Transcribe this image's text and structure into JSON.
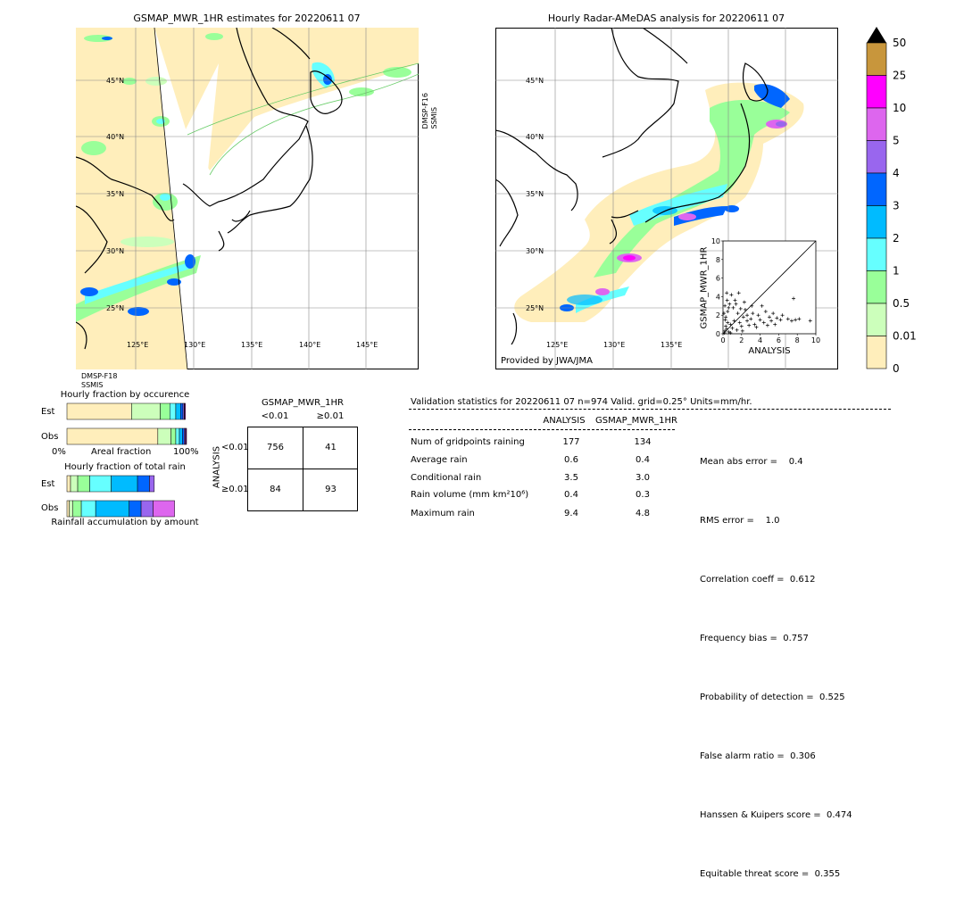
{
  "left_map": {
    "title": "GSMAP_MWR_1HR estimates for 20220611 07",
    "lat_labels": [
      "45°N",
      "40°N",
      "35°N",
      "30°N",
      "25°N"
    ],
    "lon_labels": [
      "125°E",
      "130°E",
      "135°E",
      "140°E",
      "145°E"
    ],
    "swath_label_right": [
      "DMSP-F16",
      "SSMIS"
    ],
    "swath_label_bottom": [
      "DMSP-F18",
      "SSMIS"
    ]
  },
  "right_map": {
    "title": "Hourly Radar-AMeDAS analysis for 20220611 07",
    "lat_labels": [
      "45°N",
      "40°N",
      "35°N",
      "30°N",
      "25°N"
    ],
    "lon_labels": [
      "125°E",
      "130°E",
      "135°E"
    ],
    "credit": "Provided by JWA/JMA"
  },
  "colorbar": {
    "labels": [
      "50",
      "25",
      "10",
      "5",
      "4",
      "3",
      "2",
      "1",
      "0.5",
      "0.01",
      "0"
    ],
    "colors": [
      "#c8963c",
      "#ff00ff",
      "#dd66ee",
      "#9966ee",
      "#0066ff",
      "#00bbff",
      "#66ffff",
      "#99ff99",
      "#ccffbb",
      "#ffeebb"
    ]
  },
  "chart_data": [
    {
      "type": "scatter",
      "title": "",
      "xlabel": "ANALYSIS",
      "ylabel": "GSMAP_MWR_1HR",
      "xlim": [
        0,
        10
      ],
      "ylim": [
        0,
        10
      ],
      "xticks": [
        "0",
        "2",
        "4",
        "6",
        "8",
        "10"
      ],
      "yticks": [
        "0",
        "2",
        "4",
        "6",
        "8",
        "10"
      ],
      "diagonal": true,
      "points": [
        [
          0.2,
          0.3
        ],
        [
          0.4,
          0.5
        ],
        [
          0.6,
          0.2
        ],
        [
          0.8,
          1.0
        ],
        [
          1.0,
          0.6
        ],
        [
          1.2,
          1.4
        ],
        [
          0.3,
          1.8
        ],
        [
          0.5,
          2.4
        ],
        [
          0.7,
          3.2
        ],
        [
          0.9,
          4.2
        ],
        [
          1.1,
          2.8
        ],
        [
          1.3,
          3.6
        ],
        [
          0.4,
          4.4
        ],
        [
          1.6,
          2.2
        ],
        [
          1.8,
          1.2
        ],
        [
          2.0,
          0.8
        ],
        [
          2.2,
          1.8
        ],
        [
          2.4,
          2.6
        ],
        [
          2.6,
          1.4
        ],
        [
          2.8,
          0.9
        ],
        [
          3.0,
          1.6
        ],
        [
          3.2,
          2.2
        ],
        [
          3.4,
          1.0
        ],
        [
          3.6,
          0.7
        ],
        [
          3.8,
          2.0
        ],
        [
          4.0,
          1.5
        ],
        [
          4.2,
          3.0
        ],
        [
          4.4,
          1.2
        ],
        [
          4.6,
          2.4
        ],
        [
          4.8,
          0.9
        ],
        [
          5.0,
          1.8
        ],
        [
          5.2,
          1.4
        ],
        [
          5.4,
          2.2
        ],
        [
          5.6,
          1.0
        ],
        [
          5.8,
          1.7
        ],
        [
          6.2,
          1.5
        ],
        [
          6.4,
          2.0
        ],
        [
          7.0,
          1.6
        ],
        [
          7.4,
          1.4
        ],
        [
          7.8,
          1.5
        ],
        [
          8.2,
          1.6
        ],
        [
          9.4,
          1.4
        ],
        [
          7.6,
          3.8
        ],
        [
          0.2,
          3.0
        ],
        [
          0.6,
          2.8
        ],
        [
          1.4,
          3.2
        ],
        [
          1.7,
          4.4
        ],
        [
          2.3,
          3.4
        ],
        [
          0.15,
          0.1
        ],
        [
          0.3,
          0.8
        ],
        [
          0.5,
          1.2
        ],
        [
          0.1,
          2.2
        ],
        [
          0.8,
          0.1
        ],
        [
          1.5,
          0.4
        ],
        [
          2.1,
          0.3
        ],
        [
          0.25,
          1.5
        ],
        [
          1.9,
          2.7
        ],
        [
          3.1,
          3.0
        ],
        [
          0.45,
          3.6
        ],
        [
          2.6,
          2.0
        ]
      ]
    },
    {
      "type": "bar",
      "title": "Hourly fraction by occurence",
      "categories": [
        "Est",
        "Obs"
      ],
      "xlabel": "Areal fraction",
      "x_left_label": "0%",
      "x_right_label": "100%",
      "series": [
        {
          "color": "#ffeebb",
          "values": [
            0.54,
            0.76
          ]
        },
        {
          "color": "#ccffbb",
          "values": [
            0.24,
            0.11
          ]
        },
        {
          "color": "#99ff99",
          "values": [
            0.08,
            0.04
          ]
        },
        {
          "color": "#66ffff",
          "values": [
            0.05,
            0.03
          ]
        },
        {
          "color": "#00bbff",
          "values": [
            0.04,
            0.025
          ]
        },
        {
          "color": "#0066ff",
          "values": [
            0.02,
            0.015
          ]
        },
        {
          "color": "#9966ee",
          "values": [
            0.01,
            0.01
          ]
        },
        {
          "color": "#dd66ee",
          "values": [
            0.005,
            0.005
          ]
        },
        {
          "color": "#ff00ff",
          "values": [
            0.005,
            0.005
          ]
        }
      ]
    },
    {
      "type": "bar",
      "title": "Hourly fraction of total rain",
      "categories": [
        "Est",
        "Obs"
      ],
      "xlabel": "Rainfall accumulation by amount",
      "series": [
        {
          "color": "#ffeebb",
          "values": [
            0.03,
            0.02
          ]
        },
        {
          "color": "#ccffbb",
          "values": [
            0.06,
            0.03
          ]
        },
        {
          "color": "#99ff99",
          "values": [
            0.1,
            0.07
          ]
        },
        {
          "color": "#66ffff",
          "values": [
            0.18,
            0.12
          ]
        },
        {
          "color": "#00bbff",
          "values": [
            0.22,
            0.28
          ]
        },
        {
          "color": "#0066ff",
          "values": [
            0.1,
            0.1
          ]
        },
        {
          "color": "#9966ee",
          "values": [
            0.04,
            0.1
          ]
        },
        {
          "color": "#dd66ee",
          "values": [
            0.0,
            0.18
          ]
        },
        {
          "color": "#ff00ff",
          "values": [
            0.0,
            0.0
          ]
        }
      ]
    }
  ],
  "contingency": {
    "title": "GSMAP_MWR_1HR",
    "col_labels": [
      "<0.01",
      "≥0.01"
    ],
    "row_labels": [
      "<0.01",
      "≥0.01"
    ],
    "side_label": "ANALYSIS",
    "cells": [
      [
        "756",
        "41"
      ],
      [
        "84",
        "93"
      ]
    ]
  },
  "validation": {
    "header": "Validation statistics for 20220611 07  n=974 Valid. grid=0.25° Units=mm/hr.",
    "col1": "ANALYSIS",
    "col2": "GSMAP_MWR_1HR",
    "rows": [
      {
        "label": "Num of gridpoints raining",
        "a": "177",
        "b": "134"
      },
      {
        "label": "Average rain",
        "a": "0.6",
        "b": "0.4"
      },
      {
        "label": "Conditional rain",
        "a": "3.5",
        "b": "3.0"
      },
      {
        "label": "Rain volume (mm km²10⁶)",
        "a": "0.4",
        "b": "0.3"
      },
      {
        "label": "Maximum rain",
        "a": "9.4",
        "b": "4.8"
      }
    ],
    "scores": [
      "Mean abs error =    0.4",
      "RMS error =    1.0",
      "Correlation coeff =  0.612",
      "Frequency bias =  0.757",
      "Probability of detection =  0.525",
      "False alarm ratio =  0.306",
      "Hanssen & Kuipers score =  0.474",
      "Equitable threat score =  0.355"
    ]
  }
}
